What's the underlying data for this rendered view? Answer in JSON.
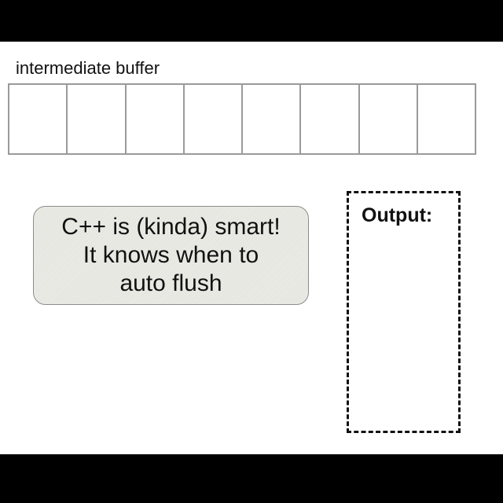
{
  "buffer": {
    "label": "intermediate buffer",
    "cell_count": 8
  },
  "note": {
    "lines": [
      "C++ is (kinda) smart!",
      "It knows when to",
      "auto flush"
    ]
  },
  "output": {
    "label": "Output:"
  },
  "colors": {
    "background": "#ffffff",
    "letterbox": "#000000",
    "cell_border": "#9a9a9a",
    "note_fill": "#ebebe6",
    "note_border": "#8c8c8c",
    "text": "#111111"
  }
}
